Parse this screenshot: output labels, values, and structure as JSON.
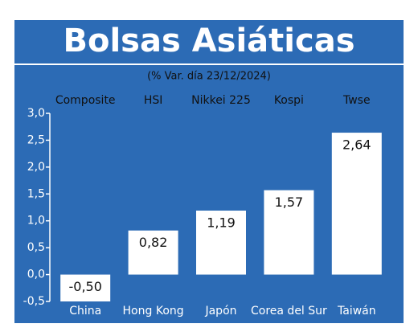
{
  "chart_data": {
    "type": "bar",
    "title": "Bolsas Asiáticas",
    "subtitle": "(% Var. día 23/12/2024)",
    "categories": [
      "China",
      "Hong Kong",
      "Japón",
      "Corea del Sur",
      "Taiwán"
    ],
    "index_names": [
      "Composite",
      "HSI",
      "Nikkei 225",
      "Kospi",
      "Twse"
    ],
    "values": [
      -0.5,
      0.82,
      1.19,
      1.57,
      2.64
    ],
    "value_labels": [
      "-0,50",
      "0,82",
      "1,19",
      "1,57",
      "2,64"
    ],
    "color": "#ffffff",
    "ylim": [
      -0.5,
      3.0
    ],
    "yticks": [
      {
        "value": -0.5,
        "label": "-0,5"
      },
      {
        "value": 0,
        "label": "0,0"
      },
      {
        "value": 0.5,
        "label": "0,5"
      },
      {
        "value": 1,
        "label": "1,0"
      },
      {
        "value": 1.5,
        "label": "1,5"
      },
      {
        "value": 2,
        "label": "2,0"
      },
      {
        "value": 2.5,
        "label": "2,5"
      },
      {
        "value": 3,
        "label": "3,0"
      }
    ],
    "grid": false
  }
}
